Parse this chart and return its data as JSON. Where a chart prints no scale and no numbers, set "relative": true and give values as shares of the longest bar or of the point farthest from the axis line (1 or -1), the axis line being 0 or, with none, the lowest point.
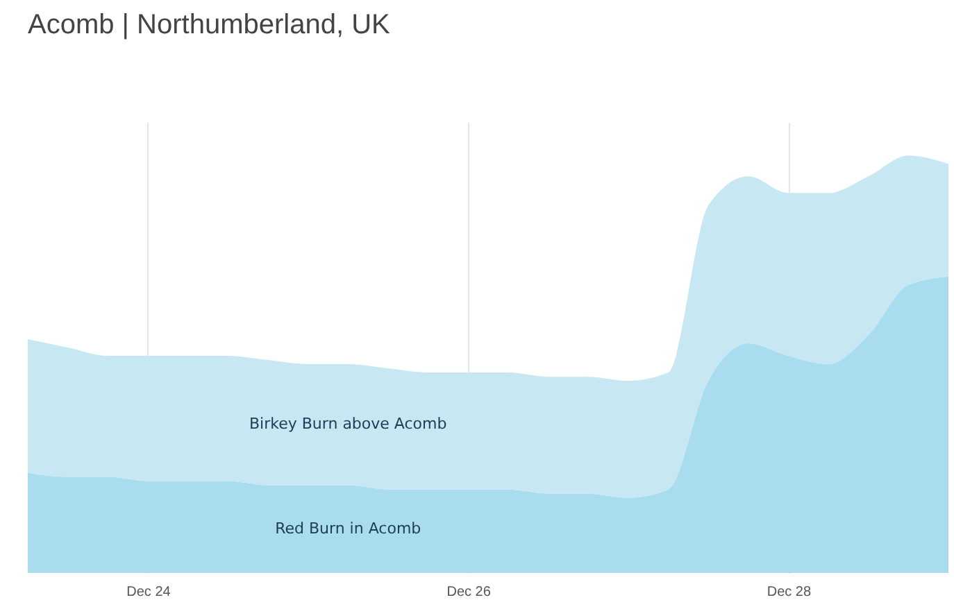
{
  "chart_data": {
    "type": "area",
    "title": "Acomb | Northumberland, UK",
    "relative": true,
    "stacked": true,
    "grid": "x",
    "categories": [
      null,
      null,
      null,
      "Dec 24",
      null,
      null,
      null,
      null,
      null,
      null,
      null,
      "Dec 26",
      null,
      null,
      null,
      null,
      null,
      null,
      null,
      "Dec 28",
      null,
      null,
      null,
      null
    ],
    "series": [
      {
        "name": "Red Burn in Acomb",
        "color": "#a9dcee",
        "values": [
          0.24,
          0.23,
          0.23,
          0.22,
          0.22,
          0.22,
          0.21,
          0.21,
          0.21,
          0.2,
          0.2,
          0.2,
          0.2,
          0.19,
          0.19,
          0.18,
          0.2,
          0.46,
          0.55,
          0.52,
          0.5,
          0.57,
          0.69,
          0.71
        ]
      },
      {
        "name": "Birkey Burn above Acomb",
        "color": "#c7e7f3",
        "values": [
          0.32,
          0.31,
          0.29,
          0.3,
          0.3,
          0.3,
          0.3,
          0.29,
          0.29,
          0.29,
          0.28,
          0.28,
          0.28,
          0.28,
          0.28,
          0.28,
          0.28,
          0.42,
          0.4,
          0.39,
          0.41,
          0.38,
          0.31,
          0.27
        ]
      }
    ]
  }
}
